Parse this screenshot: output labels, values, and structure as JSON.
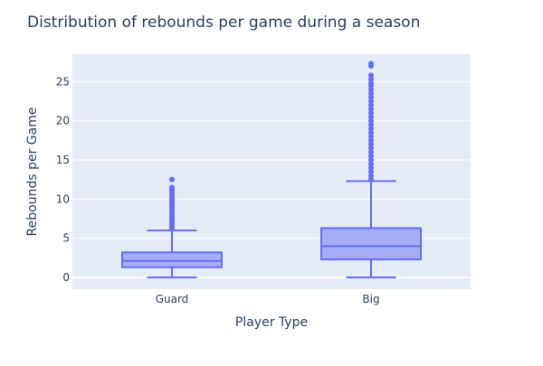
{
  "chart_data": {
    "type": "box",
    "title": "Distribution of rebounds per game during a season",
    "xlabel": "Player Type",
    "ylabel": "Rebounds per Game",
    "ylim": [
      -1.5,
      28.5
    ],
    "yticks": [
      0,
      5,
      10,
      15,
      20,
      25
    ],
    "grid": true,
    "legend": "none",
    "colors": {
      "box_fill": "#a6acf6",
      "box_line": "#636efa",
      "plot_bg": "#e5ecf6",
      "grid": "#ffffff",
      "text": "#2a3f5f"
    },
    "categories": [
      "Guard",
      "Big"
    ],
    "boxes": [
      {
        "category": "Guard",
        "lower_whisker": 0,
        "q1": 1.3,
        "median": 2.1,
        "q3": 3.2,
        "upper_whisker": 6.0,
        "outliers": [
          6.2,
          6.5,
          6.8,
          7.0,
          7.3,
          7.6,
          7.9,
          8.2,
          8.5,
          8.8,
          9.1,
          9.4,
          9.7,
          10.0,
          10.3,
          10.6,
          10.9,
          11.2,
          11.5,
          12.5
        ]
      },
      {
        "category": "Big",
        "lower_whisker": 0,
        "q1": 2.3,
        "median": 4.0,
        "q3": 6.3,
        "upper_whisker": 12.3,
        "outliers": [
          12.5,
          13.0,
          13.5,
          14.0,
          14.5,
          15.0,
          15.5,
          16.0,
          16.5,
          17.0,
          17.5,
          18.0,
          18.5,
          19.0,
          19.5,
          20.0,
          20.5,
          21.0,
          21.5,
          22.0,
          22.5,
          23.0,
          23.5,
          24.0,
          24.5,
          24.8,
          25.3,
          25.8,
          27.0,
          27.3
        ]
      }
    ]
  }
}
